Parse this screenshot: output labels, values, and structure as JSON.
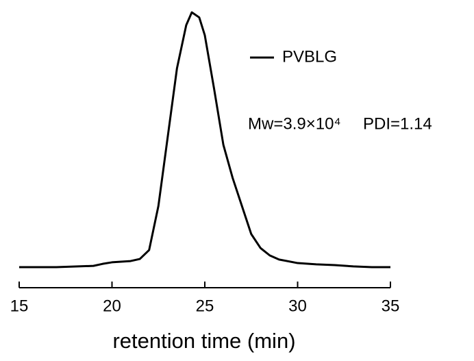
{
  "chart_data": {
    "type": "line",
    "x": [
      15,
      17,
      19,
      19.5,
      20,
      21,
      21.5,
      22,
      22.5,
      23,
      23.5,
      24,
      24.3,
      24.7,
      25,
      25.5,
      26,
      26.5,
      27,
      27.5,
      28,
      28.5,
      29,
      30,
      31,
      32,
      33,
      34,
      35
    ],
    "series": [
      {
        "name": "PVBLG",
        "color": "#000000",
        "values": [
          0,
          0,
          0.005,
          0.013,
          0.019,
          0.024,
          0.032,
          0.067,
          0.24,
          0.51,
          0.78,
          0.95,
          1.0,
          0.98,
          0.91,
          0.7,
          0.48,
          0.35,
          0.24,
          0.13,
          0.075,
          0.046,
          0.03,
          0.016,
          0.011,
          0.008,
          0.003,
          0,
          0
        ]
      }
    ],
    "xlim": [
      15,
      35
    ],
    "xticks": [
      15,
      20,
      25,
      30,
      35
    ],
    "ylim": [
      0,
      1
    ],
    "xlabel": "retention time (min)",
    "annotations": [
      "Mw=3.9×10⁴",
      "PDI=1.14"
    ]
  }
}
